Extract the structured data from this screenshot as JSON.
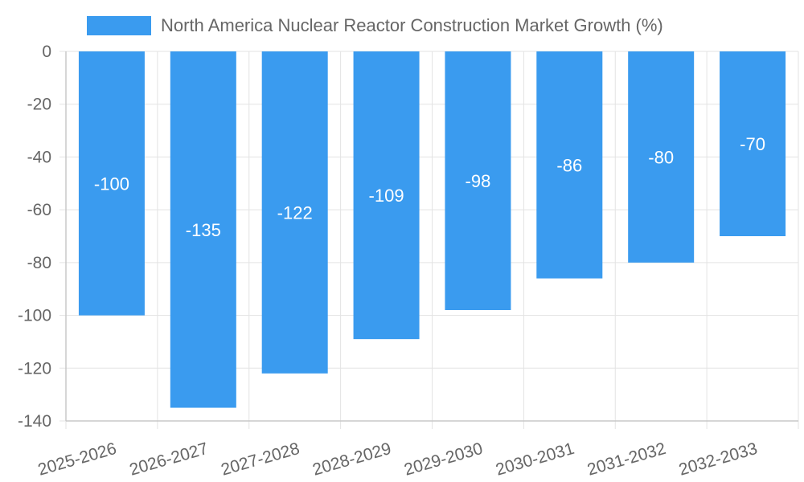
{
  "chart_data": {
    "type": "bar",
    "categories": [
      "2025-2026",
      "2026-2027",
      "2027-2028",
      "2028-2029",
      "2029-2030",
      "2030-2031",
      "2031-2032",
      "2032-2033"
    ],
    "series": [
      {
        "name": "North America Nuclear Reactor Construction Market Growth (%)",
        "values": [
          -100,
          -135,
          -122,
          -109,
          -98,
          -86,
          -80,
          -70
        ]
      }
    ],
    "ylim": [
      -140,
      0
    ],
    "yticks": [
      0,
      -20,
      -40,
      -60,
      -80,
      -100,
      -120,
      -140
    ],
    "grid": true,
    "legend_position": "top",
    "data_labels": true,
    "colors": {
      "bar": "#3a9bef",
      "grid": "#e3e3e3",
      "axis": "#c8c8c8",
      "tick_text": "#666666",
      "label_text": "#ffffff"
    }
  }
}
